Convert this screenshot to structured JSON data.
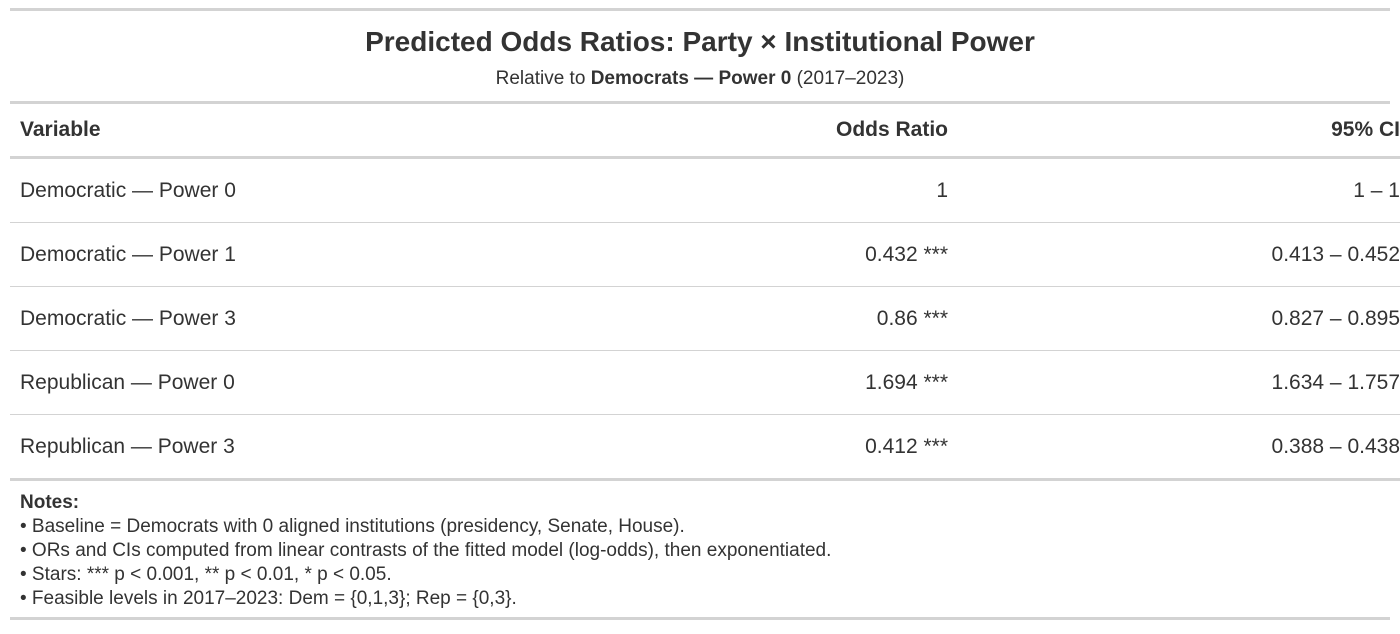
{
  "table": {
    "title": "Predicted Odds Ratios: Party × Institutional Power",
    "subtitle": {
      "prefix": "Relative to",
      "bold": "Democrats — Power 0",
      "suffix": "(2017–2023)"
    },
    "columns": [
      "Variable",
      "Odds Ratio",
      "95% CI"
    ],
    "rows": [
      {
        "variable": "Democratic — Power 0",
        "odds_ratio": "1",
        "ci": "1 – 1"
      },
      {
        "variable": "Democratic — Power 1",
        "odds_ratio": "0.432 ***",
        "ci": "0.413 – 0.452"
      },
      {
        "variable": "Democratic — Power 3",
        "odds_ratio": "0.86 ***",
        "ci": "0.827 – 0.895"
      },
      {
        "variable": "Republican — Power 0",
        "odds_ratio": "1.694 ***",
        "ci": "1.634 – 1.757"
      },
      {
        "variable": "Republican — Power 3",
        "odds_ratio": "0.412 ***",
        "ci": "0.388 – 0.438"
      }
    ],
    "notes": {
      "heading": "Notes:",
      "items": [
        "• Baseline = Democrats with 0 aligned institutions (presidency, Senate, House).",
        "• ORs and CIs computed from linear contrasts of the fitted model (log-odds), then exponentiated.",
        "• Stars: *** p < 0.001, ** p < 0.01, * p < 0.05.",
        "• Feasible levels in 2017–2023: Dem = {0,1,3}; Rep = {0,3}."
      ]
    }
  }
}
